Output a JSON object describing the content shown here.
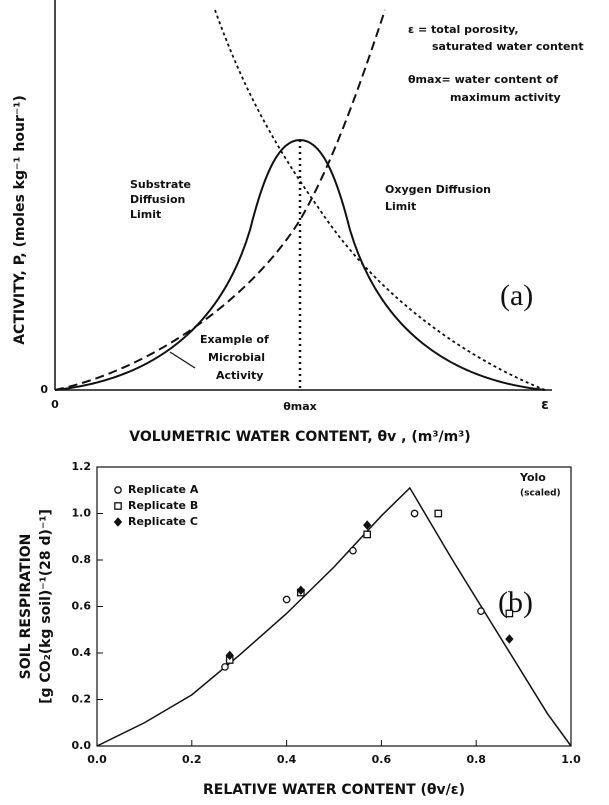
{
  "panel_a": {
    "label": "(a)",
    "y_label": "ACTIVITY, P, (moles kg⁻¹ hour⁻¹)",
    "x_label": "VOLUMETRIC WATER CONTENT, θv , (m³/m³)",
    "y_tick": "0",
    "x_ticks": [
      "0",
      "θmax",
      "ε"
    ],
    "notes": [
      "ε = total porosity,",
      "saturated water content",
      "θmax= water content of",
      "maximum activity"
    ],
    "substrate_label": [
      "Substrate",
      "Diffusion",
      "Limit"
    ],
    "oxygen_label": [
      "Oxygen Diffusion",
      "Limit"
    ],
    "activity_label": [
      "Example of",
      "Microbial",
      "Activity"
    ]
  },
  "chart_data": {
    "type": "scatter",
    "panel_label": "(b)",
    "y_label": [
      "SOIL RESPIRATION",
      "[g CO₂(kg soil)⁻¹(28 d)⁻¹]"
    ],
    "x_label": "RELATIVE WATER CONTENT (θv/ε)",
    "xlim": [
      0,
      1
    ],
    "ylim": [
      0,
      1.2
    ],
    "xticks": [
      {
        "value": 0,
        "label": "0.0"
      },
      {
        "value": 0.2,
        "label": "0.2"
      },
      {
        "value": 0.4,
        "label": "0.4"
      },
      {
        "value": 0.6,
        "label": "0.6"
      },
      {
        "value": 0.8,
        "label": "0.8"
      },
      {
        "value": 1,
        "label": "1.0"
      }
    ],
    "yticks": [
      {
        "value": 0,
        "label": "0.0"
      },
      {
        "value": 0.2,
        "label": "0.2"
      },
      {
        "value": 0.4,
        "label": "0.4"
      },
      {
        "value": 0.6,
        "label": "0.6"
      },
      {
        "value": 0.8,
        "label": "0.8"
      },
      {
        "value": 1,
        "label": "1.0"
      },
      {
        "value": 1.2,
        "label": "1.2"
      }
    ],
    "series": [
      {
        "name": "Replicate A",
        "marker": "circle",
        "color": "#111111",
        "x": [
          0.27,
          0.4,
          0.54,
          0.67,
          0.81
        ],
        "values": [
          0.34,
          0.63,
          0.84,
          1.0,
          0.58
        ]
      },
      {
        "name": "Replicate B",
        "marker": "square",
        "color": "#111111",
        "x": [
          0.28,
          0.43,
          0.57,
          0.72,
          0.87
        ],
        "values": [
          0.37,
          0.66,
          0.91,
          1.0,
          0.57
        ]
      },
      {
        "name": "Replicate C",
        "marker": "diamond",
        "color": "#111111",
        "x": [
          0.28,
          0.43,
          0.57,
          0.87
        ],
        "values": [
          0.39,
          0.67,
          0.95,
          0.46
        ]
      }
    ],
    "curve": {
      "label": [
        "Yolo",
        "(scaled)"
      ],
      "color": "#111111",
      "x": [
        0,
        0.1,
        0.2,
        0.3,
        0.4,
        0.5,
        0.6,
        0.66,
        0.75,
        0.85,
        0.95,
        1.0
      ],
      "values": [
        0,
        0.1,
        0.22,
        0.39,
        0.57,
        0.77,
        0.99,
        1.11,
        0.8,
        0.47,
        0.14,
        0
      ]
    }
  }
}
